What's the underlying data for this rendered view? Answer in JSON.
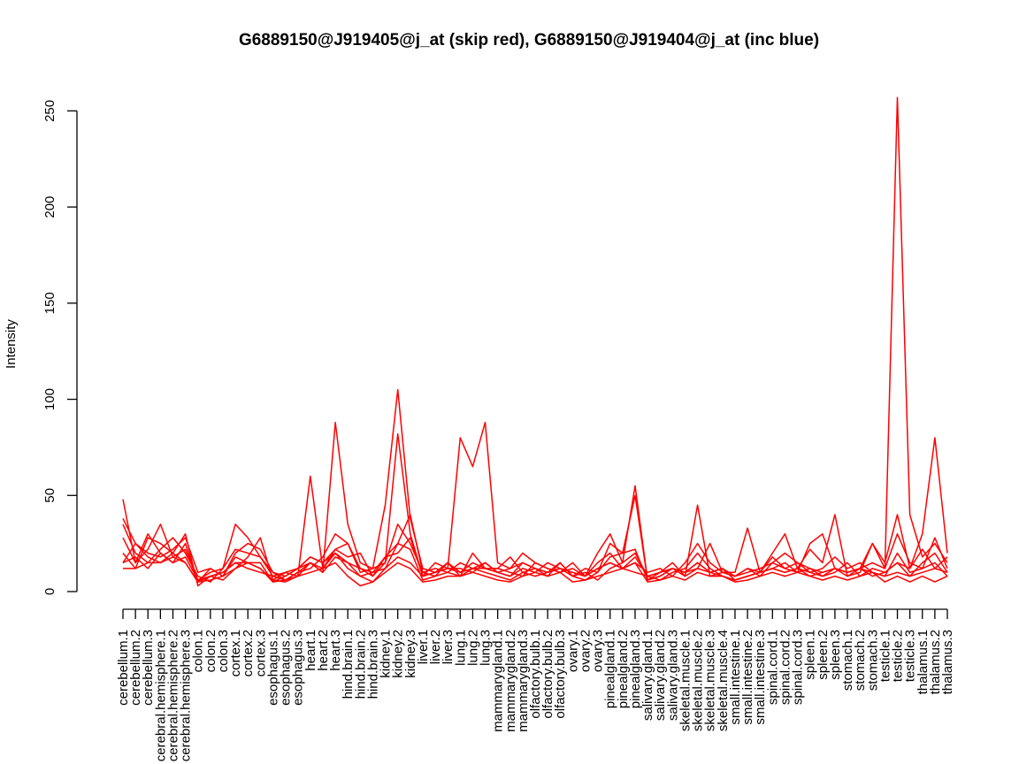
{
  "chart_data": {
    "type": "line",
    "title": "G6889150@J919405@j_at (skip red), G6889150@J919404@j_at (inc blue)",
    "xlabel": "",
    "ylabel": "Intensity",
    "ylim": [
      0,
      258
    ],
    "yticks": [
      0,
      50,
      100,
      150,
      200,
      250
    ],
    "grid": false,
    "categories": [
      "cerebellum.1",
      "cerebellum.2",
      "cerebellum.3",
      "cerebral.hemisphere.1",
      "cerebral.hemisphere.2",
      "cerebral.hemisphere.3",
      "colon.1",
      "colon.2",
      "colon.3",
      "cortex.1",
      "cortex.2",
      "cortex.3",
      "esophagus.1",
      "esophagus.2",
      "esophagus.3",
      "heart.1",
      "heart.2",
      "heart.3",
      "hind.brain.1",
      "hind.brain.2",
      "hind.brain.3",
      "kidney.1",
      "kidney.2",
      "kidney.3",
      "liver.1",
      "liver.2",
      "liver.3",
      "lung.1",
      "lung.2",
      "lung.3",
      "mammarygland.1",
      "mammarygland.2",
      "mammarygland.3",
      "olfactory.bulb.1",
      "olfactory.bulb.2",
      "olfactory.bulb.3",
      "ovary.1",
      "ovary.2",
      "ovary.3",
      "pinealgland.1",
      "pinealgland.2",
      "pinealgland.3",
      "salivary.gland.1",
      "salivary.gland.2",
      "salivary.gland.3",
      "skeletal.muscle.1",
      "skeletal.muscle.2",
      "skeletal.muscle.3",
      "skeletal.muscle.4",
      "small.intestine.1",
      "small.intestine.2",
      "small.intestine.3",
      "spinal.cord.1",
      "spinal.cord.2",
      "spinal.cord.3",
      "spleen.1",
      "spleen.2",
      "spleen.3",
      "stomach.1",
      "stomach.2",
      "stomach.3",
      "testicle.1",
      "testicle.2",
      "testicle.3",
      "thalamus.1",
      "thalamus.2",
      "thalamus.3"
    ],
    "colors": {
      "skip": "#ff0000",
      "inc": "#0000ff"
    },
    "series": [
      {
        "group": "skip",
        "values": [
          38,
          25,
          20,
          18,
          22,
          28,
          10,
          12,
          8,
          20,
          25,
          22,
          10,
          8,
          12,
          18,
          15,
          22,
          25,
          12,
          10,
          18,
          25,
          40,
          10,
          12,
          10,
          15,
          12,
          12,
          10,
          8,
          12,
          10,
          15,
          12,
          10,
          8,
          12,
          15,
          12,
          18,
          8,
          10,
          12,
          10,
          15,
          10,
          12,
          8,
          10,
          12,
          15,
          12,
          15,
          12,
          10,
          12,
          10,
          12,
          15,
          12,
          257,
          40,
          18,
          25,
          15
        ]
      },
      {
        "group": "skip",
        "values": [
          48,
          15,
          22,
          35,
          18,
          22,
          6,
          10,
          12,
          35,
          28,
          18,
          8,
          6,
          10,
          15,
          10,
          88,
          35,
          15,
          12,
          45,
          105,
          38,
          12,
          10,
          15,
          8,
          20,
          12,
          12,
          18,
          10,
          8,
          10,
          15,
          8,
          6,
          10,
          25,
          20,
          50,
          6,
          8,
          12,
          8,
          45,
          8,
          10,
          10,
          33,
          10,
          20,
          30,
          12,
          22,
          15,
          40,
          8,
          12,
          25,
          15,
          40,
          12,
          30,
          80,
          20
        ]
      },
      {
        "group": "skip",
        "values": [
          15,
          25,
          18,
          15,
          20,
          15,
          5,
          8,
          6,
          12,
          18,
          28,
          6,
          5,
          8,
          60,
          12,
          22,
          18,
          20,
          8,
          15,
          82,
          30,
          8,
          15,
          12,
          80,
          65,
          88,
          15,
          12,
          20,
          15,
          12,
          10,
          15,
          8,
          20,
          30,
          15,
          55,
          6,
          10,
          15,
          8,
          12,
          25,
          10,
          8,
          12,
          10,
          18,
          12,
          10,
          25,
          30,
          12,
          10,
          12,
          8,
          10,
          15,
          12,
          22,
          12,
          18
        ]
      },
      {
        "group": "skip",
        "values": [
          28,
          15,
          30,
          20,
          15,
          25,
          5,
          12,
          8,
          18,
          15,
          15,
          5,
          8,
          12,
          18,
          15,
          20,
          12,
          8,
          5,
          12,
          25,
          22,
          6,
          8,
          10,
          8,
          12,
          10,
          8,
          6,
          10,
          12,
          8,
          15,
          8,
          10,
          6,
          12,
          15,
          20,
          8,
          6,
          10,
          12,
          20,
          12,
          8,
          6,
          8,
          10,
          12,
          10,
          12,
          8,
          10,
          12,
          8,
          10,
          25,
          12,
          30,
          15,
          12,
          28,
          12
        ]
      },
      {
        "group": "skip",
        "values": [
          20,
          12,
          28,
          25,
          20,
          30,
          3,
          8,
          10,
          15,
          15,
          12,
          6,
          10,
          8,
          15,
          10,
          18,
          15,
          12,
          8,
          18,
          20,
          28,
          8,
          10,
          12,
          12,
          10,
          15,
          10,
          8,
          15,
          12,
          10,
          12,
          8,
          12,
          10,
          18,
          20,
          22,
          6,
          8,
          12,
          10,
          15,
          10,
          12,
          6,
          8,
          10,
          12,
          15,
          10,
          12,
          8,
          10,
          15,
          8,
          12,
          10,
          15,
          8,
          15,
          20,
          10
        ]
      },
      {
        "group": "skip",
        "values": [
          35,
          20,
          15,
          22,
          28,
          20,
          8,
          5,
          12,
          22,
          20,
          18,
          10,
          6,
          10,
          12,
          18,
          30,
          25,
          10,
          12,
          15,
          35,
          25,
          10,
          8,
          15,
          10,
          15,
          12,
          12,
          10,
          8,
          15,
          12,
          10,
          12,
          8,
          15,
          20,
          12,
          15,
          10,
          12,
          8,
          15,
          25,
          15,
          10,
          8,
          12,
          8,
          15,
          20,
          15,
          10,
          12,
          18,
          12,
          15,
          10,
          8,
          20,
          10,
          12,
          15,
          8
        ]
      },
      {
        "group": "skip",
        "values": [
          12,
          12,
          15,
          15,
          18,
          15,
          5,
          6,
          8,
          12,
          15,
          12,
          5,
          6,
          8,
          10,
          12,
          15,
          8,
          3,
          5,
          10,
          15,
          12,
          5,
          6,
          8,
          8,
          10,
          8,
          6,
          5,
          8,
          10,
          8,
          10,
          5,
          6,
          8,
          10,
          12,
          15,
          5,
          6,
          8,
          6,
          10,
          8,
          8,
          5,
          6,
          8,
          10,
          8,
          10,
          8,
          6,
          8,
          6,
          8,
          10,
          5,
          8,
          5,
          8,
          5,
          8
        ]
      },
      {
        "group": "skip",
        "values": [
          15,
          18,
          12,
          20,
          15,
          18,
          6,
          8,
          10,
          15,
          12,
          10,
          8,
          10,
          12,
          15,
          12,
          20,
          15,
          8,
          10,
          12,
          18,
          15,
          8,
          10,
          12,
          10,
          12,
          15,
          10,
          12,
          15,
          12,
          10,
          12,
          10,
          8,
          12,
          15,
          12,
          10,
          8,
          10,
          12,
          10,
          12,
          10,
          8,
          6,
          8,
          10,
          12,
          10,
          12,
          10,
          8,
          12,
          10,
          12,
          10,
          8,
          10,
          8,
          10,
          12,
          10
        ]
      }
    ]
  }
}
